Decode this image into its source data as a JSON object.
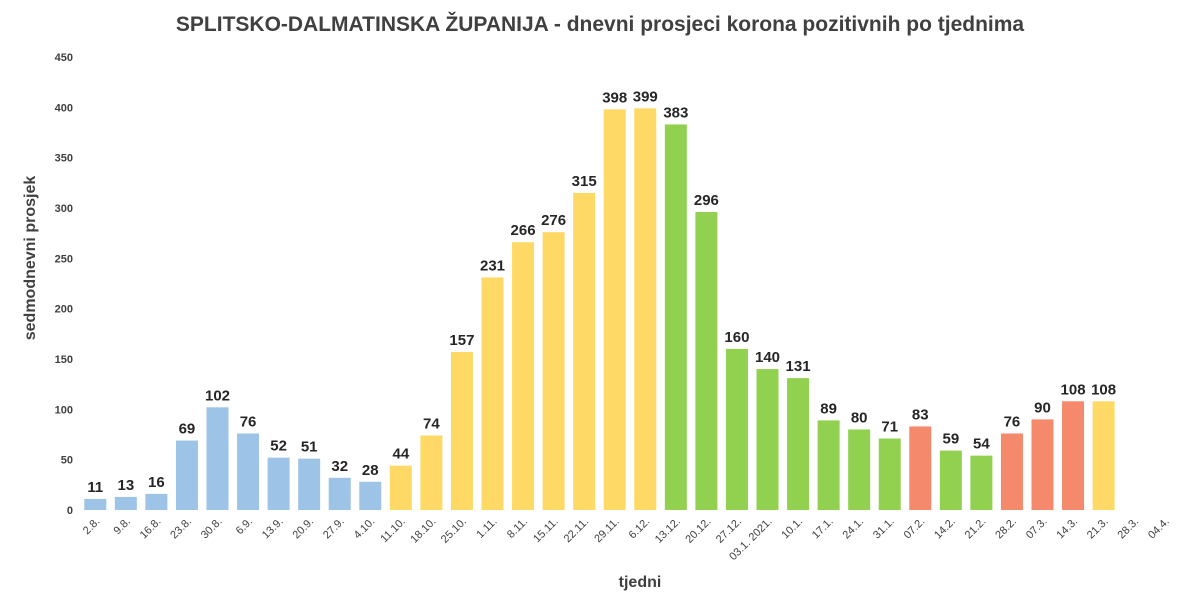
{
  "chart_data": {
    "type": "bar",
    "title": "SPLITSKO-DALMATINSKA ŽUPANIJA - dnevni prosjeci korona pozitivnih po tjednima",
    "xlabel": "tjedni",
    "ylabel": "sedmodnevni prosjek",
    "ylim": [
      0,
      450
    ],
    "yticks": [
      0,
      50,
      100,
      150,
      200,
      250,
      300,
      350,
      400,
      450
    ],
    "grid": false,
    "legend": "none",
    "categories": [
      "2.8.",
      "9.8.",
      "16.8.",
      "23.8.",
      "30.8.",
      "6.9.",
      "13.9.",
      "20.9.",
      "27.9.",
      "4.10.",
      "11.10.",
      "18.10.",
      "25.10.",
      "1.11.",
      "8.11.",
      "15.11.",
      "22.11.",
      "29.11.",
      "6.12.",
      "13.12.",
      "20.12.",
      "27.12.",
      "03.1. 2021.",
      "10.1.",
      "17.1.",
      "24.1.",
      "31.1.",
      "07.2.",
      "14.2.",
      "21.2.",
      "28.2.",
      "07.3.",
      "14.3.",
      "21.3.",
      "28.3.",
      "04.4."
    ],
    "values": [
      11,
      13,
      16,
      69,
      102,
      76,
      52,
      51,
      32,
      28,
      44,
      74,
      157,
      231,
      266,
      276,
      315,
      398,
      399,
      383,
      296,
      160,
      140,
      131,
      89,
      80,
      71,
      83,
      59,
      54,
      76,
      90,
      108,
      108,
      null,
      null
    ],
    "bar_colors": [
      "#9dc3e6",
      "#9dc3e6",
      "#9dc3e6",
      "#9dc3e6",
      "#9dc3e6",
      "#9dc3e6",
      "#9dc3e6",
      "#9dc3e6",
      "#9dc3e6",
      "#9dc3e6",
      "#ffd966",
      "#ffd966",
      "#ffd966",
      "#ffd966",
      "#ffd966",
      "#ffd966",
      "#ffd966",
      "#ffd966",
      "#ffd966",
      "#92d050",
      "#92d050",
      "#92d050",
      "#92d050",
      "#92d050",
      "#92d050",
      "#92d050",
      "#92d050",
      "#f4896b",
      "#92d050",
      "#92d050",
      "#f4896b",
      "#f4896b",
      "#f4896b",
      "#ffd966",
      "#ffd966",
      "#ffd966"
    ]
  }
}
